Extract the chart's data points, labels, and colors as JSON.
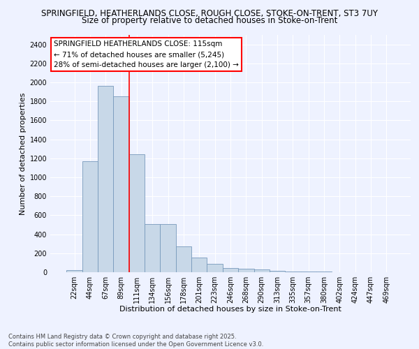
{
  "title_line1": "SPRINGFIELD, HEATHERLANDS CLOSE, ROUGH CLOSE, STOKE-ON-TRENT, ST3 7UY",
  "title_line2": "Size of property relative to detached houses in Stoke-on-Trent",
  "xlabel": "Distribution of detached houses by size in Stoke-on-Trent",
  "ylabel": "Number of detached properties",
  "categories": [
    "22sqm",
    "44sqm",
    "67sqm",
    "89sqm",
    "111sqm",
    "134sqm",
    "156sqm",
    "178sqm",
    "201sqm",
    "223sqm",
    "246sqm",
    "268sqm",
    "290sqm",
    "313sqm",
    "335sqm",
    "357sqm",
    "380sqm",
    "402sqm",
    "424sqm",
    "447sqm",
    "469sqm"
  ],
  "values": [
    25,
    1170,
    1960,
    1850,
    1245,
    510,
    510,
    270,
    155,
    85,
    45,
    35,
    30,
    15,
    8,
    5,
    4,
    3,
    2,
    2,
    2
  ],
  "bar_color": "#c8d8e8",
  "bar_edge_color": "#7799bb",
  "vline_color": "red",
  "annotation_text": "SPRINGFIELD HEATHERLANDS CLOSE: 115sqm\n← 71% of detached houses are smaller (5,245)\n28% of semi-detached houses are larger (2,100) →",
  "annotation_box_color": "white",
  "annotation_box_edge": "red",
  "ylim": [
    0,
    2500
  ],
  "yticks": [
    0,
    200,
    400,
    600,
    800,
    1000,
    1200,
    1400,
    1600,
    1800,
    2000,
    2200,
    2400
  ],
  "background_color": "#eef2ff",
  "grid_color": "white",
  "footer_text": "Contains HM Land Registry data © Crown copyright and database right 2025.\nContains public sector information licensed under the Open Government Licence v3.0.",
  "title_fontsize": 8.5,
  "subtitle_fontsize": 8.5,
  "axis_label_fontsize": 8,
  "tick_fontsize": 7,
  "annotation_fontsize": 7.5,
  "footer_fontsize": 6
}
